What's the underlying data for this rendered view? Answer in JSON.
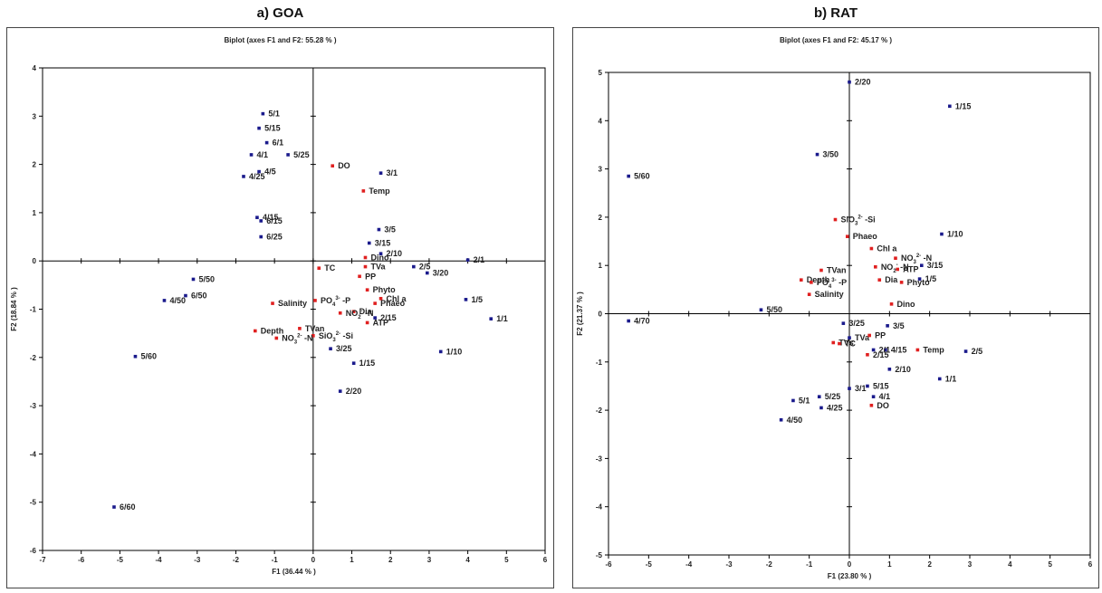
{
  "panels": [
    {
      "caption": "a) GOA"
    },
    {
      "caption": "b) RAT"
    }
  ],
  "colors": {
    "observation": "#1a1a8c",
    "variable": "#e02020",
    "axis": "#000000",
    "frame": "#444444"
  },
  "chart_data": [
    {
      "type": "scatter",
      "title": "Biplot (axes F1 and F2: 55.28 % )",
      "xlabel": "F1 (36.44 % )",
      "ylabel": "F2 (18.84 % )",
      "xlim": [
        -7,
        6
      ],
      "ylim": [
        -6,
        4
      ],
      "xticks": [
        "-7",
        "-6",
        "-5",
        "-4",
        "-3",
        "-2",
        "-1",
        "0",
        "1",
        "2",
        "3",
        "4",
        "5",
        "6"
      ],
      "yticks": [
        "-6",
        "-5",
        "-4",
        "-3",
        "-2",
        "-1",
        "0",
        "1",
        "2",
        "3",
        "4"
      ],
      "grid": false,
      "series": [
        {
          "kind": "observations",
          "points": [
            {
              "label": "5/1",
              "x": -1.3,
              "y": 3.05
            },
            {
              "label": "5/15",
              "x": -1.4,
              "y": 2.75
            },
            {
              "label": "6/1",
              "x": -1.2,
              "y": 2.45
            },
            {
              "label": "4/1",
              "x": -1.6,
              "y": 2.2
            },
            {
              "label": "5/25",
              "x": -0.65,
              "y": 2.2
            },
            {
              "label": "4/5",
              "x": -1.4,
              "y": 1.85
            },
            {
              "label": "4/25",
              "x": -1.8,
              "y": 1.75
            },
            {
              "label": "3/1",
              "x": 1.75,
              "y": 1.82
            },
            {
              "label": "4/15",
              "x": -1.45,
              "y": 0.9
            },
            {
              "label": "6/15",
              "x": -1.35,
              "y": 0.83
            },
            {
              "label": "6/25",
              "x": -1.35,
              "y": 0.5
            },
            {
              "label": "3/5",
              "x": 1.7,
              "y": 0.65
            },
            {
              "label": "3/15",
              "x": 1.45,
              "y": 0.37
            },
            {
              "label": "2/10",
              "x": 1.75,
              "y": 0.15
            },
            {
              "label": "2/1",
              "x": 4.0,
              "y": 0.02
            },
            {
              "label": "2/5",
              "x": 2.6,
              "y": -0.12
            },
            {
              "label": "3/20",
              "x": 2.95,
              "y": -0.25
            },
            {
              "label": "5/50",
              "x": -3.1,
              "y": -0.38
            },
            {
              "label": "6/50",
              "x": -3.3,
              "y": -0.72
            },
            {
              "label": "4/50",
              "x": -3.85,
              "y": -0.82
            },
            {
              "label": "1/5",
              "x": 3.95,
              "y": -0.8
            },
            {
              "label": "1/1",
              "x": 4.6,
              "y": -1.2
            },
            {
              "label": "2/15",
              "x": 1.6,
              "y": -1.18
            },
            {
              "label": "1/10",
              "x": 3.3,
              "y": -1.88
            },
            {
              "label": "3/25",
              "x": 0.45,
              "y": -1.82
            },
            {
              "label": "1/15",
              "x": 1.05,
              "y": -2.12
            },
            {
              "label": "2/20",
              "x": 0.7,
              "y": -2.7
            },
            {
              "label": "5/60",
              "x": -4.6,
              "y": -1.98
            },
            {
              "label": "6/60",
              "x": -5.15,
              "y": -5.1
            }
          ]
        },
        {
          "kind": "variables",
          "points": [
            {
              "label": "DO",
              "x": 0.5,
              "y": 1.97
            },
            {
              "label": "Temp",
              "x": 1.3,
              "y": 1.45
            },
            {
              "label": "Dino",
              "x": 1.35,
              "y": 0.07
            },
            {
              "label": "TC",
              "x": 0.15,
              "y": -0.15
            },
            {
              "label": "TVa",
              "x": 1.35,
              "y": -0.12
            },
            {
              "label": "PP",
              "x": 1.2,
              "y": -0.32
            },
            {
              "label": "Phyto",
              "x": 1.4,
              "y": -0.6
            },
            {
              "label": "Chl a",
              "x": 1.75,
              "y": -0.78
            },
            {
              "label": "Phaeo",
              "x": 1.6,
              "y": -0.88
            },
            {
              "label": "PO4 3- -P",
              "x": 0.05,
              "y": -0.82
            },
            {
              "label": "Dia",
              "x": 1.05,
              "y": -1.05
            },
            {
              "label": "NO2- -N",
              "x": 0.7,
              "y": -1.08
            },
            {
              "label": "ATP",
              "x": 1.4,
              "y": -1.28
            },
            {
              "label": "Salinity",
              "x": -1.05,
              "y": -0.88
            },
            {
              "label": "TVan",
              "x": -0.35,
              "y": -1.4
            },
            {
              "label": "Depth",
              "x": -1.5,
              "y": -1.45
            },
            {
              "label": "SiO3 2- -Si",
              "x": 0.0,
              "y": -1.55
            },
            {
              "label": "NO3 2- -N",
              "x": -0.95,
              "y": -1.6
            }
          ]
        }
      ]
    },
    {
      "type": "scatter",
      "title": "Biplot (axes F1 and F2: 45.17 % )",
      "xlabel": "F1 (23.80 % )",
      "ylabel": "F2 (21.37 % )",
      "xlim": [
        -6,
        6
      ],
      "ylim": [
        -5,
        5
      ],
      "xticks": [
        "-6",
        "-5",
        "-4",
        "-3",
        "-2",
        "-1",
        "0",
        "1",
        "2",
        "3",
        "4",
        "5",
        "6"
      ],
      "yticks": [
        "-5",
        "-4",
        "-3",
        "-2",
        "-1",
        "0",
        "1",
        "2",
        "3",
        "4",
        "5"
      ],
      "grid": false,
      "series": [
        {
          "kind": "observations",
          "points": [
            {
              "label": "2/20",
              "x": 0.0,
              "y": 4.8
            },
            {
              "label": "1/15",
              "x": 2.5,
              "y": 4.3
            },
            {
              "label": "3/50",
              "x": -0.8,
              "y": 3.3
            },
            {
              "label": "5/60",
              "x": -5.5,
              "y": 2.85
            },
            {
              "label": "1/10",
              "x": 2.3,
              "y": 1.65
            },
            {
              "label": "3/15",
              "x": 1.8,
              "y": 1.0
            },
            {
              "label": "1/5",
              "x": 1.75,
              "y": 0.72
            },
            {
              "label": "5/50",
              "x": -2.2,
              "y": 0.08
            },
            {
              "label": "4/70",
              "x": -5.5,
              "y": -0.15
            },
            {
              "label": "3/25",
              "x": -0.15,
              "y": -0.2
            },
            {
              "label": "3/5",
              "x": 0.95,
              "y": -0.25
            },
            {
              "label": "TVa",
              "x": 0.0,
              "y": -0.5
            },
            {
              "label": "2/5",
              "x": 2.9,
              "y": -0.78
            },
            {
              "label": "4/15",
              "x": 0.9,
              "y": -0.75
            },
            {
              "label": "2/1",
              "x": 0.6,
              "y": -0.75
            },
            {
              "label": "2/10",
              "x": 1.0,
              "y": -1.15
            },
            {
              "label": "1/1",
              "x": 2.25,
              "y": -1.35
            },
            {
              "label": "3/1",
              "x": 0.0,
              "y": -1.55
            },
            {
              "label": "5/15",
              "x": 0.45,
              "y": -1.5
            },
            {
              "label": "4/1",
              "x": 0.6,
              "y": -1.72
            },
            {
              "label": "5/1",
              "x": -1.4,
              "y": -1.8
            },
            {
              "label": "5/25",
              "x": -0.75,
              "y": -1.72
            },
            {
              "label": "4/25",
              "x": -0.7,
              "y": -1.95
            },
            {
              "label": "4/50",
              "x": -1.7,
              "y": -2.2
            }
          ]
        },
        {
          "kind": "variables",
          "points": [
            {
              "label": "SiO3 2- -Si",
              "x": -0.35,
              "y": 1.95
            },
            {
              "label": "Phaeo",
              "x": -0.05,
              "y": 1.6
            },
            {
              "label": "Chl a",
              "x": 0.55,
              "y": 1.35
            },
            {
              "label": "NO3 2- -N",
              "x": 1.15,
              "y": 1.15
            },
            {
              "label": "NO2- -N",
              "x": 0.65,
              "y": 0.97
            },
            {
              "label": "ATP",
              "x": 1.2,
              "y": 0.92
            },
            {
              "label": "TVan",
              "x": -0.7,
              "y": 0.9
            },
            {
              "label": "Depth",
              "x": -1.2,
              "y": 0.7
            },
            {
              "label": "PO4 3- -P",
              "x": -0.95,
              "y": 0.65
            },
            {
              "label": "Dia",
              "x": 0.75,
              "y": 0.7
            },
            {
              "label": "Phyto",
              "x": 1.3,
              "y": 0.65
            },
            {
              "label": "Salinity",
              "x": -1.0,
              "y": 0.4
            },
            {
              "label": "Dino",
              "x": 1.05,
              "y": 0.2
            },
            {
              "label": "PP",
              "x": 0.5,
              "y": -0.45
            },
            {
              "label": "TVs",
              "x": -0.4,
              "y": -0.6
            },
            {
              "label": "TC",
              "x": -0.25,
              "y": -0.62
            },
            {
              "label": "2/15",
              "x": 0.45,
              "y": -0.85
            },
            {
              "label": "Temp",
              "x": 1.7,
              "y": -0.75
            },
            {
              "label": "DO",
              "x": 0.55,
              "y": -1.9
            }
          ]
        }
      ]
    }
  ]
}
